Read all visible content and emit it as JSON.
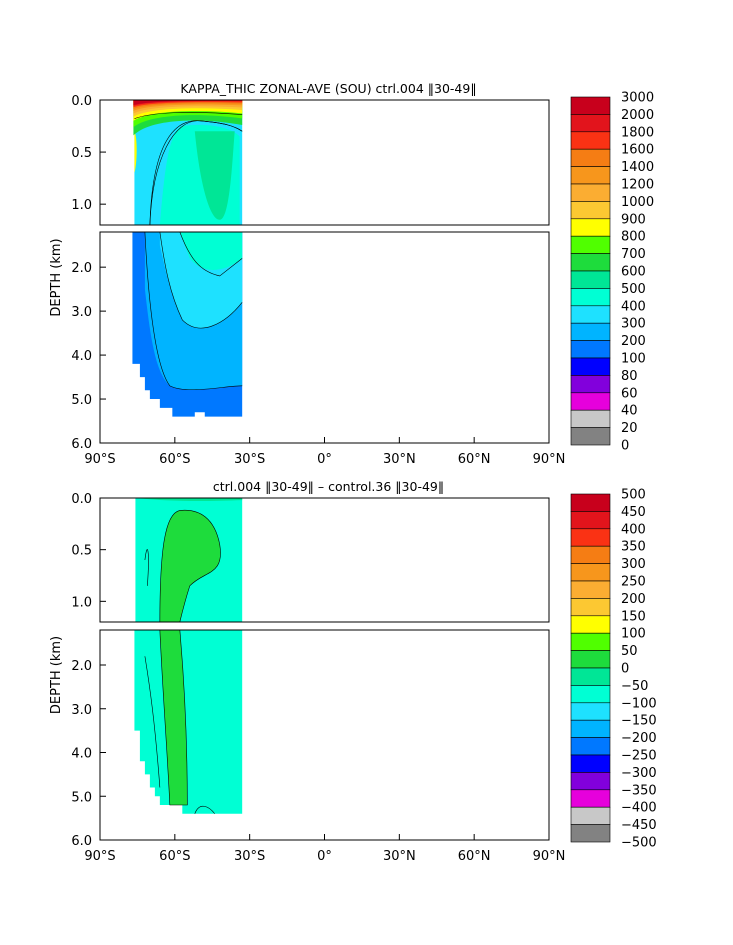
{
  "chart_data": [
    {
      "type": "heatmap",
      "title": "KAPPA_THIC ZONAL-AVE (SOU) ctrl.004 ‖30-49‖",
      "ylabel": "DEPTH (km)",
      "x_ticks": [
        "90°S",
        "60°S",
        "30°S",
        "0°",
        "30°N",
        "60°N",
        "90°N"
      ],
      "y_ticks_upper": [
        "0.0",
        "0.5",
        "1.0"
      ],
      "y_ticks_lower": [
        "2.0",
        "3.0",
        "4.0",
        "5.0",
        "6.0"
      ],
      "xlim": [
        -90,
        90
      ],
      "ylim_km": [
        0,
        6
      ],
      "colorbar": {
        "labels": [
          "3000",
          "2000",
          "1800",
          "1600",
          "1400",
          "1200",
          "1000",
          "900",
          "800",
          "700",
          "600",
          "500",
          "400",
          "300",
          "200",
          "100",
          "80",
          "60",
          "40",
          "20",
          "0"
        ],
        "colors": [
          "#c8001c",
          "#e2141c",
          "#fa3214",
          "#f57d14",
          "#f7961c",
          "#fbad32",
          "#fcc832",
          "#ffff00",
          "#50ff00",
          "#1edc3c",
          "#00e696",
          "#00ffd4",
          "#1ee1ff",
          "#00b4ff",
          "#0078ff",
          "#0000ff",
          "#8200dc",
          "#e600dc",
          "#c8c8c8",
          "#828282"
        ]
      },
      "field_summary": [
        {
          "region": "near-surface layer (0–0.1 km), 77°S–33°S",
          "value": "2000–3000"
        },
        {
          "region": "upper ocean core, 62°S–35°S",
          "value": "600–700"
        },
        {
          "region": "deep ocean, 77°S–33°S",
          "value": "200–500"
        }
      ]
    },
    {
      "type": "heatmap",
      "title": "ctrl.004 ‖30-49‖ – control.36 ‖30-49‖",
      "ylabel": "DEPTH (km)",
      "x_ticks": [
        "90°S",
        "60°S",
        "30°S",
        "0°",
        "30°N",
        "60°N",
        "90°N"
      ],
      "y_ticks_upper": [
        "0.0",
        "0.5",
        "1.0"
      ],
      "y_ticks_lower": [
        "2.0",
        "3.0",
        "4.0",
        "5.0",
        "6.0"
      ],
      "xlim": [
        -90,
        90
      ],
      "ylim_km": [
        0,
        6
      ],
      "colorbar": {
        "labels": [
          "500",
          "450",
          "400",
          "350",
          "300",
          "250",
          "200",
          "150",
          "100",
          "50",
          "0",
          "−50",
          "−100",
          "−150",
          "−200",
          "−250",
          "−300",
          "−350",
          "−400",
          "−450",
          "−500"
        ],
        "colors": [
          "#c8001c",
          "#e2141c",
          "#fa3214",
          "#f57d14",
          "#f7961c",
          "#fbad32",
          "#fcc832",
          "#ffff00",
          "#50ff00",
          "#1edc3c",
          "#00e696",
          "#00ffd4",
          "#1ee1ff",
          "#00b4ff",
          "#0078ff",
          "#0000ff",
          "#8200dc",
          "#e600dc",
          "#c8c8c8",
          "#828282"
        ]
      },
      "field_summary": [
        {
          "region": "broad column 77°S–33°S",
          "value": "−50 to 0"
        },
        {
          "region": "band 64°S–52°S full depth",
          "value": "0 to 50"
        }
      ]
    }
  ]
}
